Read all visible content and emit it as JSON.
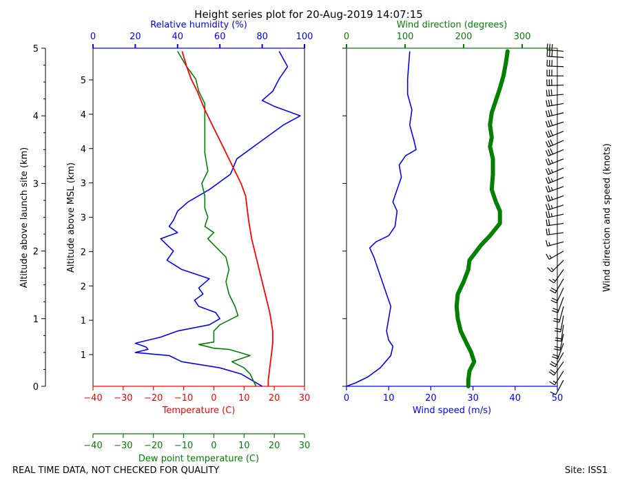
{
  "title": "Height series plot for 20-Aug-2019 14:07:15",
  "footer": {
    "left": "REAL TIME DATA, NOT CHECKED FOR QUALITY",
    "right": "Site: ISS1"
  },
  "colors": {
    "temperature": "#ff0000",
    "dewpoint": "#008000",
    "humidity": "#0000ff",
    "wind_speed": "#0000ff",
    "wind_direction": "#008000",
    "barbs": "#000000"
  },
  "chart_data": [
    {
      "type": "line",
      "panel": "thermo",
      "y_left_label": "Altitude above launch site (km)",
      "y_left_ticks": [
        "0",
        "1",
        "2",
        "3",
        "4",
        "5"
      ],
      "ylabel": "Altitude above MSL (km)",
      "y_msl_ticks": [
        "1",
        "1",
        "2",
        "2",
        "3",
        "3",
        "4",
        "4",
        "5"
      ],
      "ylim_km": [
        0,
        5.5
      ],
      "xlabel": "Temperature (C)",
      "xlim": [
        -40,
        30
      ],
      "x_ticks": [
        "−40",
        "−30",
        "−20",
        "−10",
        "0",
        "10",
        "20",
        "30"
      ],
      "top_xlabel": "Relative humidity (%)",
      "top_xlim": [
        0,
        100
      ],
      "top_x_ticks": [
        "0",
        "20",
        "40",
        "60",
        "80",
        "100"
      ],
      "dew_xlabel": "Dew point temperature (C)",
      "dew_xlim": [
        -40,
        30
      ],
      "dew_x_ticks": [
        "−40",
        "−30",
        "−20",
        "−10",
        "0",
        "10",
        "20",
        "30"
      ],
      "series": [
        {
          "name": "Temperature (C)",
          "y_km": [
            0.0,
            0.1,
            0.3,
            0.5,
            0.7,
            0.9,
            1.2,
            1.5,
            1.8,
            2.1,
            2.4,
            2.7,
            2.9,
            3.1,
            3.3,
            3.6,
            3.9,
            4.2,
            4.5,
            4.8,
            5.0,
            5.2,
            5.45
          ],
          "values": [
            18,
            18,
            18.5,
            19,
            19.5,
            19.5,
            18.5,
            17,
            15.5,
            14,
            12.5,
            11.5,
            11,
            10.5,
            9,
            6,
            3,
            0,
            -3,
            -5.5,
            -7.5,
            -9,
            -10.5
          ]
        },
        {
          "name": "Dew point temperature (C)",
          "y_km": [
            0.0,
            0.1,
            0.2,
            0.3,
            0.4,
            0.5,
            0.6,
            0.62,
            0.68,
            0.72,
            0.9,
            1.0,
            1.15,
            1.3,
            1.5,
            1.7,
            1.9,
            2.1,
            2.2,
            2.3,
            2.4,
            2.5,
            2.6,
            2.75,
            2.9,
            3.1,
            3.3,
            3.5,
            3.8,
            4.1,
            4.4,
            4.6,
            4.8,
            5.0,
            5.2,
            5.45
          ],
          "values": [
            14,
            13,
            12,
            10,
            6,
            12,
            5,
            0,
            -5,
            0,
            0,
            2,
            8,
            7,
            5,
            4,
            5,
            4,
            2,
            0,
            -2,
            0,
            -3,
            -2,
            -3,
            -3,
            -4,
            -2,
            -3,
            -3,
            -3,
            -3,
            -5,
            -6,
            -9,
            -12
          ]
        },
        {
          "name": "Relative humidity (%)",
          "y_km": [
            0.0,
            0.1,
            0.2,
            0.3,
            0.4,
            0.5,
            0.55,
            0.6,
            0.64,
            0.7,
            0.8,
            0.9,
            1.0,
            1.1,
            1.2,
            1.3,
            1.4,
            1.5,
            1.6,
            1.75,
            1.9,
            2.05,
            2.2,
            2.3,
            2.4,
            2.5,
            2.6,
            2.7,
            2.85,
            3.0,
            3.2,
            3.45,
            3.7,
            4.0,
            4.25,
            4.4,
            4.5,
            4.55,
            4.65,
            4.8,
            5.0,
            5.2,
            5.45
          ],
          "values": [
            80,
            75,
            70,
            60,
            42,
            36,
            20,
            26,
            25,
            20,
            32,
            40,
            55,
            60,
            58,
            50,
            48,
            52,
            50,
            55,
            42,
            35,
            38,
            35,
            32,
            40,
            36,
            38,
            40,
            45,
            55,
            65,
            68,
            80,
            90,
            98,
            90,
            86,
            80,
            85,
            88,
            92,
            88
          ]
        }
      ]
    },
    {
      "type": "line",
      "panel": "wind",
      "xlabel": "Wind speed (m/s)",
      "xlim": [
        0,
        50
      ],
      "x_ticks": [
        "0",
        "10",
        "20",
        "30",
        "40",
        "50"
      ],
      "top_xlabel": "Wind direction (degrees)",
      "top_xlim": [
        0,
        360
      ],
      "top_x_ticks": [
        "0",
        "100",
        "200",
        "300"
      ],
      "ylim_km": [
        0,
        5.5
      ],
      "barbs_label": "Wind direction and speed (knots)",
      "series": [
        {
          "name": "Wind speed (m/s)",
          "y_km": [
            0.0,
            0.05,
            0.15,
            0.3,
            0.5,
            0.65,
            0.75,
            0.9,
            1.1,
            1.3,
            1.5,
            1.7,
            1.9,
            2.1,
            2.25,
            2.35,
            2.45,
            2.6,
            2.85,
            3.0,
            3.2,
            3.4,
            3.6,
            3.75,
            3.85,
            4.0,
            4.25,
            4.5,
            4.75,
            5.0,
            5.45
          ],
          "values": [
            0,
            2,
            5,
            8,
            10.5,
            11,
            10,
            9.5,
            10,
            10.5,
            9.5,
            8.5,
            7.5,
            6.5,
            5.5,
            7,
            10,
            11.5,
            12,
            11,
            12,
            13,
            12.5,
            14,
            16.5,
            16,
            15,
            15.5,
            14.5,
            14.5,
            15
          ]
        },
        {
          "name": "Wind direction (degrees)",
          "y_km": [
            0.0,
            0.1,
            0.25,
            0.4,
            0.55,
            0.7,
            0.9,
            1.1,
            1.3,
            1.5,
            1.7,
            1.9,
            2.05,
            2.3,
            2.45,
            2.65,
            2.85,
            3.0,
            3.2,
            3.45,
            3.7,
            3.9,
            4.05,
            4.25,
            4.45,
            4.65,
            4.85,
            5.05,
            5.25,
            5.45
          ],
          "values": [
            208,
            208,
            210,
            218,
            213,
            205,
            195,
            190,
            188,
            190,
            200,
            208,
            210,
            230,
            245,
            262,
            262,
            255,
            248,
            250,
            250,
            245,
            248,
            245,
            248,
            255,
            262,
            268,
            272,
            275
          ]
        }
      ],
      "barbs": {
        "y_km": [
          0.1,
          0.25,
          0.4,
          0.55,
          0.7,
          0.85,
          1.0,
          1.15,
          1.3,
          1.45,
          1.6,
          1.75,
          1.9,
          2.05,
          2.2,
          2.35,
          2.5,
          2.65,
          2.8,
          2.95,
          3.1,
          3.25,
          3.4,
          3.55,
          3.7,
          3.85,
          4.0,
          4.15,
          4.3,
          4.45,
          4.6,
          4.75,
          4.9,
          5.05,
          5.2,
          5.35,
          5.45
        ],
        "direction_deg": [
          208,
          212,
          215,
          210,
          200,
          192,
          188,
          190,
          195,
          200,
          205,
          210,
          215,
          225,
          240,
          255,
          262,
          262,
          258,
          252,
          250,
          250,
          248,
          247,
          248,
          247,
          246,
          248,
          252,
          256,
          260,
          264,
          268,
          270,
          272,
          274,
          275
        ],
        "speed_kt": [
          10,
          15,
          20,
          20,
          20,
          20,
          20,
          20,
          20,
          20,
          20,
          20,
          15,
          15,
          15,
          15,
          20,
          20,
          25,
          25,
          25,
          25,
          25,
          25,
          25,
          30,
          30,
          30,
          30,
          30,
          30,
          30,
          30,
          30,
          30,
          30,
          30
        ]
      }
    }
  ]
}
